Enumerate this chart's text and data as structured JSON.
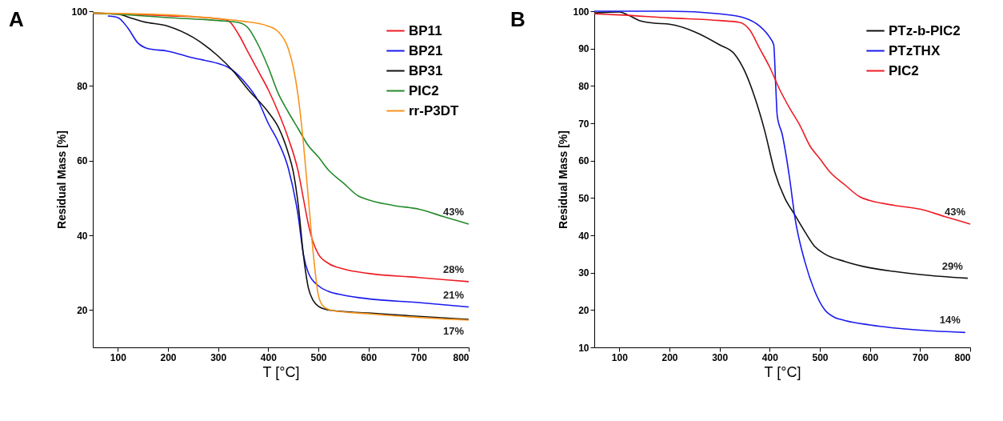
{
  "chart_data": [
    {
      "type": "line",
      "title": "A",
      "xlabel": "T [°C]",
      "ylabel": "Residual Mass [%]",
      "xlim": [
        50,
        800
      ],
      "ylim": [
        10,
        100
      ],
      "xticks": [
        100,
        200,
        300,
        400,
        500,
        600,
        700,
        800
      ],
      "yticks": [
        20,
        40,
        60,
        80,
        100
      ],
      "grid": false,
      "legend": "top right",
      "annotations": [
        {
          "text": "43%",
          "x": 800,
          "y": 43
        },
        {
          "text": "28%",
          "x": 800,
          "y": 27.6
        },
        {
          "text": "21%",
          "x": 800,
          "y": 20.8
        },
        {
          "text": "17%",
          "x": 800,
          "y": 17.3
        }
      ],
      "series": [
        {
          "name": "BP11",
          "color": "#ee1c24",
          "x": [
            50,
            100,
            200,
            300,
            320,
            340,
            360,
            380,
            400,
            420,
            440,
            460,
            470,
            480,
            490,
            500,
            520,
            550,
            600,
            700,
            800
          ],
          "values": [
            99.5,
            99.3,
            98.8,
            98,
            97.5,
            94,
            89,
            84,
            79,
            73,
            66,
            57,
            50,
            43,
            38,
            35,
            32.5,
            31,
            29.8,
            28.7,
            27.6
          ]
        },
        {
          "name": "BP21",
          "color": "#1a1aee",
          "x": [
            80,
            100,
            120,
            140,
            160,
            200,
            250,
            300,
            320,
            350,
            380,
            400,
            420,
            440,
            460,
            470,
            480,
            500,
            520,
            550,
            600,
            700,
            800
          ],
          "values": [
            98.7,
            98.3,
            95.5,
            91.5,
            90,
            89.3,
            87.5,
            86,
            85,
            81.5,
            76,
            70,
            65,
            58,
            45,
            35,
            30,
            26.5,
            25,
            24,
            23,
            22,
            20.8
          ]
        },
        {
          "name": "BP31",
          "color": "#111111",
          "x": [
            50,
            100,
            130,
            150,
            200,
            250,
            300,
            330,
            360,
            400,
            420,
            440,
            450,
            460,
            470,
            480,
            490,
            500,
            520,
            550,
            600,
            700,
            800
          ],
          "values": [
            99.5,
            99.2,
            98,
            97.2,
            96,
            93,
            88,
            84,
            79,
            73,
            69,
            62,
            57,
            48,
            35,
            26,
            22.5,
            21,
            20,
            19.6,
            19.2,
            18.3,
            17.5
          ]
        },
        {
          "name": "PIC2",
          "color": "#238a2a",
          "x": [
            50,
            100,
            200,
            300,
            340,
            360,
            380,
            400,
            420,
            440,
            460,
            480,
            500,
            520,
            550,
            580,
            600,
            650,
            700,
            750,
            800
          ],
          "values": [
            99.5,
            99.2,
            98.3,
            97.5,
            97,
            95.5,
            91,
            85,
            78,
            73,
            68.5,
            64,
            61,
            57.5,
            54,
            50.5,
            49.5,
            48,
            47,
            45,
            43
          ]
        },
        {
          "name": "rr-P3DT",
          "color": "#f7941d",
          "x": [
            50,
            200,
            300,
            350,
            400,
            420,
            440,
            450,
            460,
            470,
            480,
            490,
            500,
            510,
            530,
            600,
            700,
            800
          ],
          "values": [
            99.5,
            99,
            98,
            97.3,
            96,
            94.5,
            90,
            85,
            77,
            65,
            50,
            35,
            24,
            21,
            19.8,
            19,
            18,
            17.3
          ]
        }
      ]
    },
    {
      "type": "line",
      "title": "B",
      "xlabel": "T [°C]",
      "ylabel": "Residual Mass [%]",
      "xlim": [
        50,
        800
      ],
      "ylim": [
        10,
        100
      ],
      "xticks": [
        100,
        200,
        300,
        400,
        500,
        600,
        700,
        800
      ],
      "yticks": [
        10,
        20,
        30,
        40,
        50,
        60,
        70,
        80,
        90,
        100
      ],
      "grid": false,
      "legend": "top right",
      "annotations": [
        {
          "text": "43%",
          "x": 800,
          "y": 43
        },
        {
          "text": "29%",
          "x": 795,
          "y": 28.5
        },
        {
          "text": "14%",
          "x": 790,
          "y": 14
        }
      ],
      "series": [
        {
          "name": "PTz-b-PIC2",
          "color": "#111111",
          "x": [
            50,
            100,
            120,
            140,
            170,
            200,
            250,
            300,
            330,
            350,
            370,
            390,
            410,
            430,
            450,
            470,
            490,
            510,
            550,
            600,
            650,
            700,
            795
          ],
          "values": [
            99.5,
            99.8,
            98.8,
            97.5,
            96.8,
            96.5,
            94.5,
            91,
            88.5,
            84,
            77,
            68,
            57,
            50,
            45.5,
            41,
            37,
            35,
            33,
            31.3,
            30.3,
            29.5,
            28.5
          ]
        },
        {
          "name": "PTzTHX",
          "color": "#1a1aee",
          "x": [
            50,
            200,
            300,
            350,
            380,
            400,
            408,
            412,
            415,
            425,
            440,
            450,
            470,
            490,
            510,
            530,
            550,
            600,
            700,
            790
          ],
          "values": [
            100,
            100,
            99.3,
            98.2,
            96,
            93,
            91,
            80,
            72,
            67,
            55,
            45,
            33,
            25,
            20,
            18,
            17.2,
            16,
            14.6,
            14
          ]
        },
        {
          "name": "PIC2",
          "color": "#ee1c24",
          "x": [
            50,
            100,
            200,
            300,
            340,
            360,
            380,
            400,
            420,
            440,
            460,
            480,
            500,
            520,
            550,
            580,
            600,
            650,
            700,
            750,
            800
          ],
          "values": [
            99.3,
            99,
            98.2,
            97.5,
            97,
            95,
            90,
            85,
            79,
            74,
            69.5,
            64,
            60.5,
            57,
            53.5,
            50.3,
            49.3,
            48,
            47,
            45,
            43
          ]
        }
      ]
    }
  ]
}
